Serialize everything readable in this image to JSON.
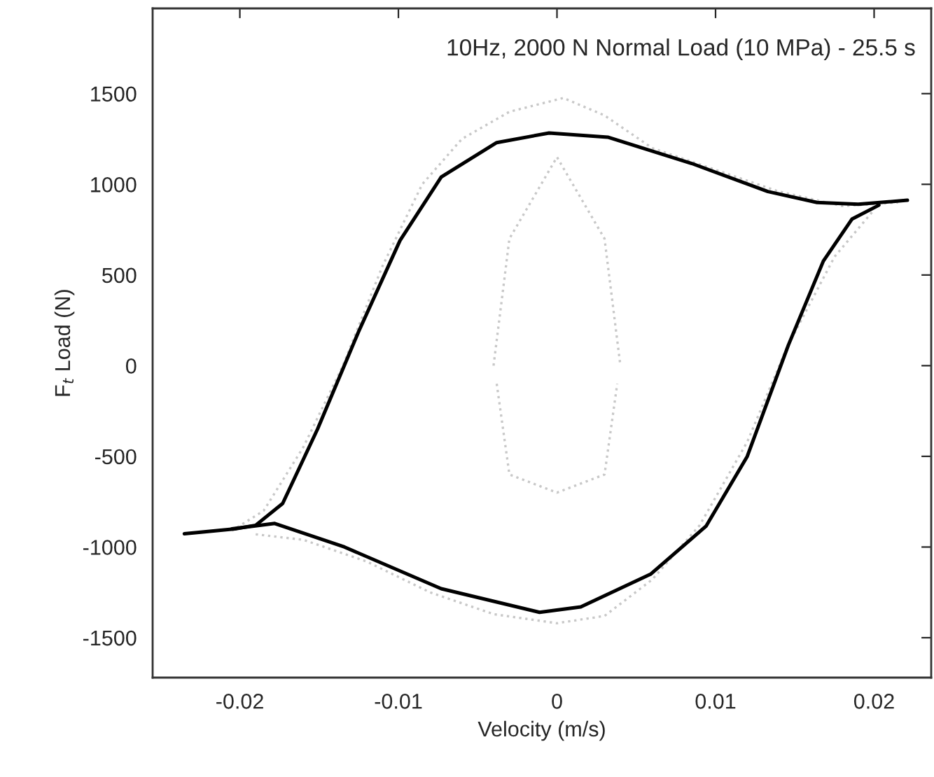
{
  "chart_data": {
    "type": "line",
    "title": "10Hz, 2000 N Normal Load (10 MPa) - 25.5 s",
    "xlabel": "Velocity (m/s)",
    "ylabel": "F$_{t}$ Load (N)",
    "xlim": [
      -0.0255,
      0.0236
    ],
    "ylim": [
      -1720,
      1970
    ],
    "xticks": [
      -0.02,
      -0.01,
      0,
      0.01,
      0.02
    ],
    "yticks": [
      -1500,
      -1000,
      -500,
      0,
      500,
      1000,
      1500
    ],
    "grid": false,
    "legend": false,
    "marker": "none",
    "series": [
      {
        "color": "#c8c8c8",
        "line_style": "dotted",
        "x": [
          -0.0205,
          -0.0185,
          -0.016,
          -0.0135,
          -0.011,
          -0.0085,
          -0.006,
          -0.003,
          0.0004,
          0.003,
          0.006,
          0.01,
          0.014,
          0.018,
          0.0215
        ],
        "values": [
          -910,
          -800,
          -450,
          0,
          550,
          1000,
          1250,
          1400,
          1476,
          1380,
          1200,
          1080,
          960,
          880,
          900
        ]
      },
      {
        "color": "#c8c8c8",
        "line_style": "dotted",
        "x": [
          -0.019,
          -0.016,
          -0.012,
          -0.008,
          -0.004,
          0.0,
          0.003,
          0.006,
          0.009,
          0.012,
          0.0145,
          0.0175,
          0.02
        ],
        "values": [
          -930,
          -960,
          -1080,
          -1250,
          -1370,
          -1420,
          -1380,
          -1180,
          -880,
          -420,
          100,
          600,
          860
        ]
      },
      {
        "color": "#c8c8c8",
        "line_style": "dotted",
        "x": [
          -0.004,
          -0.003,
          0.0,
          0.003,
          0.004
        ],
        "values": [
          0,
          700,
          1150,
          700,
          0
        ]
      },
      {
        "color": "#c8c8c8",
        "line_style": "dotted",
        "x": [
          -0.0038,
          -0.003,
          0.0,
          0.003,
          0.0038
        ],
        "values": [
          -100,
          -600,
          -700,
          -600,
          -100
        ]
      },
      {
        "color": "#000000",
        "line_style": "solid",
        "x": [
          -0.0235,
          -0.0203,
          -0.019,
          -0.0173,
          -0.0151,
          -0.0125,
          -0.0099,
          -0.0073,
          -0.0038,
          -0.0005,
          0.0032,
          0.0085,
          0.0133,
          0.0164,
          0.019,
          0.0221
        ],
        "values": [
          -927,
          -900,
          -880,
          -760,
          -350,
          190,
          690,
          1040,
          1230,
          1283,
          1260,
          1115,
          960,
          900,
          890,
          912
        ]
      },
      {
        "color": "#000000",
        "line_style": "solid",
        "x": [
          -0.0205,
          -0.0178,
          -0.0134,
          -0.0073,
          -0.0011,
          0.0015,
          0.0059,
          0.0094,
          0.012,
          0.0146,
          0.0168,
          0.0186,
          0.0203
        ],
        "values": [
          -900,
          -870,
          -1000,
          -1230,
          -1360,
          -1330,
          -1150,
          -885,
          -500,
          115,
          577,
          808,
          885
        ]
      }
    ]
  }
}
